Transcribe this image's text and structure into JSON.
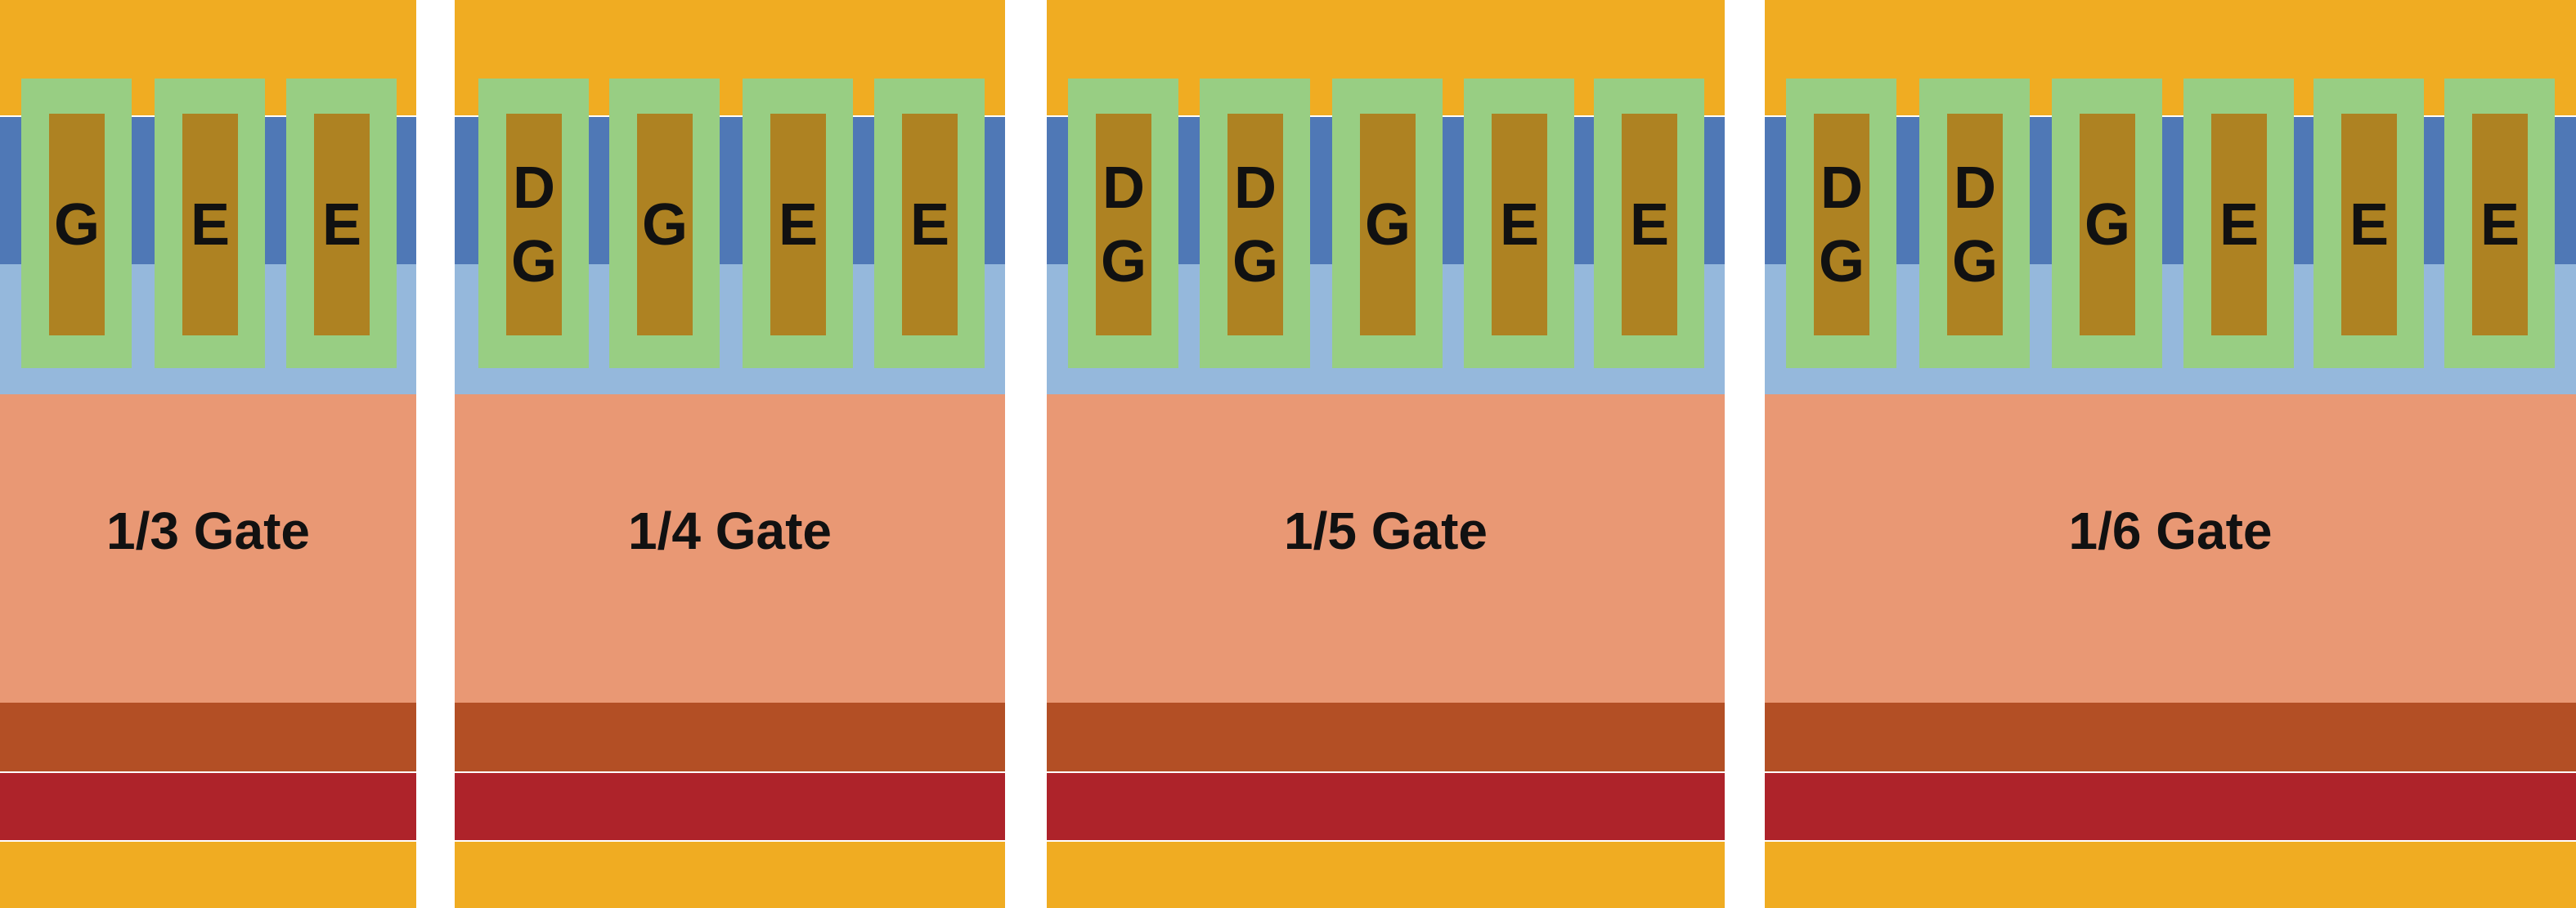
{
  "colors": {
    "top_layer": "#F0AC22",
    "dark_blue_layer": "#4F78B6",
    "light_blue_layer": "#95B8DC",
    "spacer": "#98CE83",
    "gate_core": "#AE8222",
    "body_layer": "#E99874",
    "lower_layer": "#B34F25",
    "red_layer": "#AE232A",
    "bottom_layer": "#F0AC22"
  },
  "panels": [
    {
      "label": "1/3 Gate",
      "gates": [
        [
          "G"
        ],
        [
          "E"
        ],
        [
          "E"
        ]
      ]
    },
    {
      "label": "1/4 Gate",
      "gates": [
        [
          "D",
          "G"
        ],
        [
          "G"
        ],
        [
          "E"
        ],
        [
          "E"
        ]
      ]
    },
    {
      "label": "1/5 Gate",
      "gates": [
        [
          "D",
          "G"
        ],
        [
          "D",
          "G"
        ],
        [
          "G"
        ],
        [
          "E"
        ],
        [
          "E"
        ]
      ]
    },
    {
      "label": "1/6 Gate",
      "gates": [
        [
          "D",
          "G"
        ],
        [
          "D",
          "G"
        ],
        [
          "G"
        ],
        [
          "E"
        ],
        [
          "E"
        ],
        [
          "E"
        ]
      ]
    }
  ]
}
